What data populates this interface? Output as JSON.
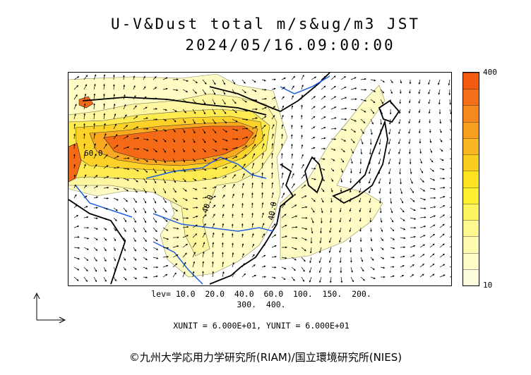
{
  "header": {
    "title": "U-V&Dust total m/s&ug/m3 JST",
    "datetime": "2024/05/16.09:00:00"
  },
  "colorbar": {
    "max_label": "400",
    "min_label": "10",
    "colors": [
      "#f25a10",
      "#f47018",
      "#f68820",
      "#f89f20",
      "#fab620",
      "#fbcd20",
      "#fde320",
      "#fef030",
      "#fef660",
      "#fef890",
      "#fefab0",
      "#fefcc8",
      "#fefde0"
    ]
  },
  "legend": {
    "lev_line1": "lev= 10.0  20.0  40.0  60.0  100.  150.  200.",
    "lev_line2": "300.  400.",
    "units": "XUNIT = 6.000E+01, YUNIT = 6.000E+01"
  },
  "map_labels": {
    "contour_a": "40.0",
    "contour_b": "40.0",
    "contour_c": "60.0"
  },
  "footer": {
    "copyright": "©九州大学応用力学研究所(RIAM)/国立環境研究所(NIES)"
  },
  "chart_data": {
    "type": "heatmap",
    "title": "U-V&Dust total m/s&ug/m3 JST",
    "subtitle": "2024/05/16.09:00:00",
    "variable": "dust total concentration (ug/m3) with U-V wind vectors (m/s)",
    "contour_levels": [
      10.0,
      20.0,
      40.0,
      60.0,
      100.0,
      150.0,
      200.0,
      300.0,
      400.0
    ],
    "colorbar_range": [
      10,
      400
    ],
    "vector_units": {
      "x_unit": 60.0,
      "y_unit": 60.0
    }
  }
}
